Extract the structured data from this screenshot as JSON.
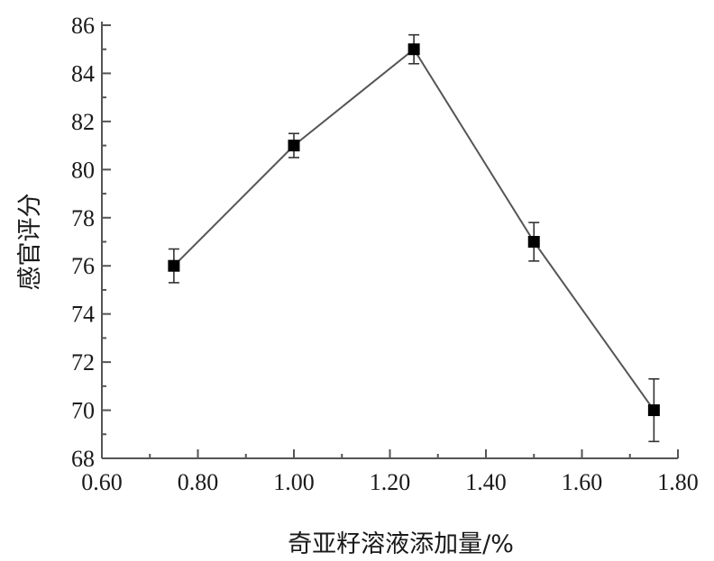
{
  "chart_data": {
    "type": "line",
    "title": "",
    "xlabel": "奇亚籽溶液添加量/%",
    "ylabel": "感官评分",
    "xlim": [
      0.6,
      1.8
    ],
    "ylim": [
      68,
      86
    ],
    "xticks": [
      0.6,
      0.8,
      1.0,
      1.2,
      1.4,
      1.6,
      1.8
    ],
    "xtick_labels": [
      "0.60",
      "0.80",
      "1.00",
      "1.20",
      "1.40",
      "1.60",
      "1.80"
    ],
    "yticks": [
      68,
      70,
      72,
      74,
      76,
      78,
      80,
      82,
      84,
      86
    ],
    "ytick_labels": [
      "68",
      "70",
      "72",
      "74",
      "76",
      "78",
      "80",
      "82",
      "84",
      "86"
    ],
    "grid": false,
    "series": [
      {
        "x": [
          0.75,
          1.0,
          1.25,
          1.5,
          1.75
        ],
        "y": [
          76,
          81,
          85,
          77,
          70
        ],
        "error": [
          0.7,
          0.5,
          0.6,
          0.8,
          1.3
        ],
        "marker": "square",
        "color": "#555555",
        "marker_color": "#000000"
      }
    ]
  }
}
